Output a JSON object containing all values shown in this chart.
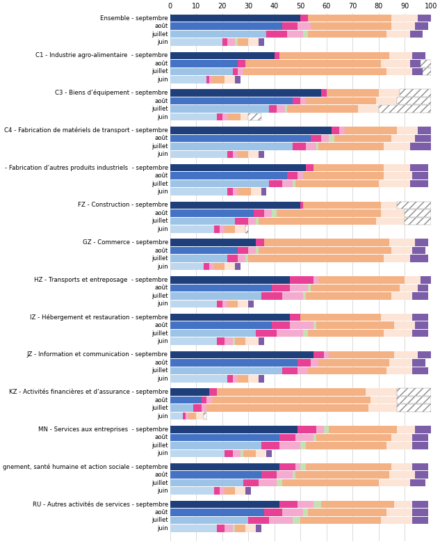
{
  "sectors": [
    "Ensemble",
    "C1 - Industrie agro-alimentaire ",
    "C3 - Biens d’équipement",
    "C4 - Fabrication de matériels de transport",
    "- Fabrication d’autres produits industriels ",
    "FZ - Construction",
    "GZ - Commerce",
    "HZ - Transports et entreposage ",
    "IZ - Hébergement et restauration",
    "JZ - Information et communication",
    "KZ - Activités financières et d’assurance",
    "MN - Services aux entreprises ",
    "gnement, santé humaine et action sociale",
    "RU - Autres activités de services"
  ],
  "months": [
    "septembre",
    "août",
    "juillet",
    "juin"
  ],
  "blue_shades": [
    "#1F3F7A",
    "#4472C4",
    "#9DC3E6",
    "#BDD7EE"
  ],
  "seg_colors": [
    "#E84094",
    "#F4ABCF",
    "#C5E0B4",
    "#F4B183",
    "#FCE4D6",
    "#7B5EA7"
  ],
  "hatch_color": "#999999",
  "raw_data": {
    "Ensemble": {
      "septembre": [
        50,
        3,
        0,
        0,
        32,
        10,
        5,
        0
      ],
      "août": [
        43,
        6,
        5,
        0,
        31,
        9,
        5,
        0
      ],
      "juillet": [
        37,
        8,
        6,
        2,
        30,
        9,
        5,
        0
      ],
      "juin": [
        20,
        2,
        3,
        1,
        4,
        4,
        2,
        0
      ]
    },
    "C1 - Industrie agro-alimentaire ": {
      "septembre": [
        40,
        2,
        0,
        0,
        42,
        9,
        5,
        0
      ],
      "août": [
        26,
        3,
        0,
        0,
        52,
        11,
        4,
        4
      ],
      "juillet": [
        24,
        2,
        2,
        0,
        55,
        10,
        4,
        3
      ],
      "juin": [
        14,
        1,
        1,
        0,
        5,
        4,
        2,
        0
      ]
    },
    "C3 - Biens d’équipement": {
      "septembre": [
        58,
        2,
        0,
        0,
        20,
        8,
        0,
        12
      ],
      "août": [
        47,
        3,
        2,
        0,
        27,
        8,
        0,
        13
      ],
      "juillet": [
        38,
        3,
        3,
        1,
        27,
        8,
        0,
        20
      ],
      "juin": [
        18,
        2,
        2,
        0,
        5,
        3,
        0,
        5
      ]
    },
    "C4 - Fabrication de matériels de transport": {
      "septembre": [
        62,
        3,
        2,
        0,
        20,
        8,
        5,
        0
      ],
      "août": [
        54,
        4,
        3,
        2,
        22,
        9,
        6,
        0
      ],
      "juillet": [
        47,
        5,
        4,
        1,
        25,
        10,
        8,
        0
      ],
      "juin": [
        22,
        2,
        2,
        0,
        4,
        4,
        2,
        0
      ]
    },
    "- Fabrication d’autres produits industriels ": {
      "septembre": [
        52,
        3,
        0,
        0,
        27,
        10,
        7,
        0
      ],
      "août": [
        45,
        4,
        2,
        0,
        31,
        11,
        6,
        0
      ],
      "juillet": [
        38,
        5,
        4,
        1,
        32,
        12,
        7,
        0
      ],
      "juin": [
        22,
        2,
        2,
        0,
        5,
        4,
        2,
        0
      ]
    },
    "FZ - Construction": {
      "septembre": [
        50,
        1,
        0,
        0,
        30,
        6,
        0,
        13
      ],
      "août": [
        32,
        4,
        3,
        2,
        40,
        9,
        0,
        10
      ],
      "juillet": [
        25,
        5,
        3,
        1,
        45,
        11,
        0,
        10
      ],
      "juin": [
        17,
        2,
        2,
        0,
        4,
        4,
        0,
        1
      ]
    },
    "GZ - Commerce": {
      "septembre": [
        33,
        3,
        0,
        0,
        48,
        10,
        5,
        0
      ],
      "août": [
        26,
        4,
        3,
        1,
        51,
        8,
        5,
        0
      ],
      "juillet": [
        22,
        4,
        3,
        1,
        52,
        10,
        7,
        0
      ],
      "juin": [
        13,
        2,
        2,
        0,
        4,
        4,
        2,
        0
      ]
    },
    "HZ - Transports et entreposage ": {
      "septembre": [
        46,
        9,
        2,
        0,
        33,
        6,
        4,
        0
      ],
      "août": [
        39,
        7,
        7,
        1,
        34,
        7,
        4,
        0
      ],
      "juillet": [
        35,
        8,
        8,
        1,
        33,
        8,
        6,
        0
      ],
      "juin": [
        18,
        2,
        2,
        0,
        4,
        4,
        2,
        0
      ]
    },
    "IZ - Hébergement et restauration": {
      "septembre": [
        46,
        4,
        0,
        0,
        31,
        12,
        6,
        0
      ],
      "août": [
        39,
        7,
        9,
        1,
        30,
        8,
        5,
        0
      ],
      "juillet": [
        33,
        8,
        10,
        2,
        29,
        11,
        6,
        0
      ],
      "juin": [
        18,
        3,
        3,
        1,
        4,
        5,
        2,
        0
      ]
    },
    "JZ - Information et communication": {
      "septembre": [
        55,
        4,
        2,
        0,
        25,
        9,
        5,
        0
      ],
      "août": [
        49,
        5,
        3,
        0,
        27,
        9,
        5,
        0
      ],
      "juillet": [
        43,
        6,
        4,
        0,
        30,
        10,
        6,
        0
      ],
      "juin": [
        22,
        2,
        2,
        0,
        4,
        4,
        2,
        0
      ]
    },
    "KZ - Activités financières et d’assurance": {
      "septembre": [
        15,
        3,
        0,
        0,
        57,
        12,
        0,
        13
      ],
      "août": [
        12,
        2,
        2,
        0,
        61,
        10,
        0,
        13
      ],
      "juillet": [
        9,
        3,
        2,
        0,
        62,
        11,
        0,
        13
      ],
      "juin": [
        5,
        1,
        1,
        0,
        3,
        3,
        0,
        1
      ]
    },
    "MN - Services aux entreprises ": {
      "septembre": [
        49,
        7,
        3,
        2,
        26,
        7,
        6,
        0
      ],
      "août": [
        42,
        6,
        7,
        1,
        29,
        8,
        6,
        0
      ],
      "juillet": [
        35,
        7,
        8,
        2,
        31,
        10,
        6,
        0
      ],
      "juin": [
        21,
        3,
        3,
        1,
        5,
        4,
        2,
        0
      ]
    },
    "gnement, santé humaine et action sociale": {
      "septembre": [
        42,
        6,
        2,
        2,
        33,
        8,
        6,
        0
      ],
      "août": [
        35,
        6,
        6,
        1,
        36,
        10,
        5,
        0
      ],
      "juillet": [
        28,
        6,
        7,
        2,
        37,
        12,
        6,
        0
      ],
      "juin": [
        17,
        2,
        2,
        0,
        4,
        4,
        2,
        0
      ]
    },
    "RU - Autres activités de services": {
      "septembre": [
        42,
        7,
        6,
        3,
        28,
        7,
        6,
        0
      ],
      "août": [
        36,
        7,
        8,
        2,
        30,
        10,
        6,
        0
      ],
      "juillet": [
        30,
        8,
        9,
        3,
        31,
        12,
        6,
        0
      ],
      "juin": [
        18,
        3,
        3,
        1,
        4,
        4,
        2,
        0
      ]
    }
  }
}
